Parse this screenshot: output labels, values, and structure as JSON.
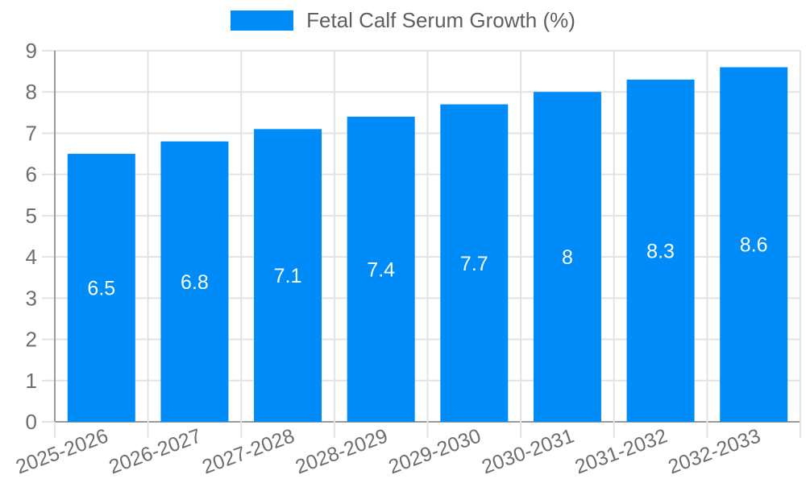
{
  "legend": {
    "label": "Fetal Calf Serum Growth (%)"
  },
  "chart_data": {
    "type": "bar",
    "title": "Fetal Calf Serum Growth (%)",
    "categories": [
      "2025-2026",
      "2026-2027",
      "2027-2028",
      "2028-2029",
      "2029-2030",
      "2030-2031",
      "2031-2032",
      "2032-2033"
    ],
    "series": [
      {
        "name": "Fetal Calf Serum Growth (%)",
        "color": "#008CF8",
        "values": [
          6.5,
          6.8,
          7.1,
          7.4,
          7.7,
          8,
          8.3,
          8.6
        ]
      }
    ],
    "data_labels": [
      "6.5",
      "6.8",
      "7.1",
      "7.4",
      "7.7",
      "8",
      "8.3",
      "8.6"
    ],
    "xlabel": "",
    "ylabel": "",
    "ylim": [
      0,
      9
    ],
    "yticks": [
      0,
      1,
      2,
      3,
      4,
      5,
      6,
      7,
      8,
      9
    ],
    "grid": true,
    "legend_position": "top-center",
    "x_label_rotation_deg": -20,
    "colors": {
      "bar": "#008CF8",
      "grid_line": "#e3e3e3",
      "axis_line": "#9a9a9a",
      "tick_text": "#6e6e6e",
      "data_label_text": "#ffffff",
      "legend_text": "#5f5f5f",
      "background": "#ffffff"
    }
  }
}
